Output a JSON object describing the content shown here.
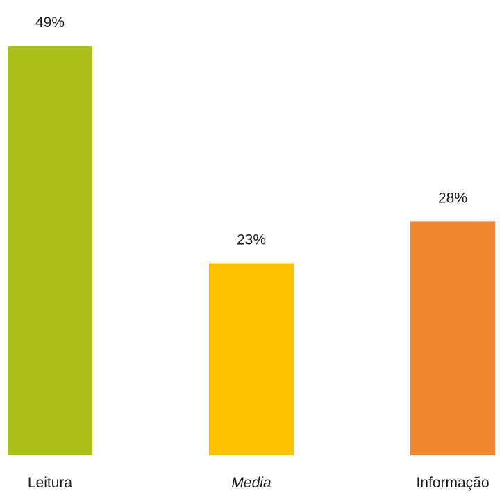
{
  "chart_data": {
    "type": "bar",
    "categories": [
      "Leitura",
      "Media",
      "Informação"
    ],
    "values": [
      49,
      23,
      28
    ],
    "value_labels": [
      "49%",
      "23%",
      "28%"
    ],
    "unit": "%",
    "colors": [
      "#ABBF1A",
      "#FCC200",
      "#F0862F"
    ],
    "category_styles": [
      "normal",
      "italic",
      "normal"
    ],
    "ylim": [
      0,
      49
    ],
    "grid": false,
    "legend": "none"
  }
}
